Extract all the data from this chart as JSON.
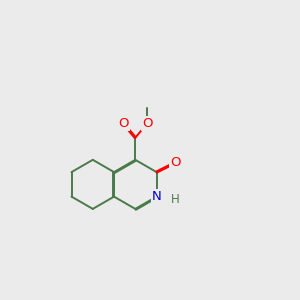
{
  "background_color": "#ebebeb",
  "bond_color": "#4a7a4a",
  "bond_width": 1.4,
  "atom_colors": {
    "O": "#ff0000",
    "N": "#0000cc",
    "C": "#4a7a4a",
    "H": "#4a7a4a"
  },
  "figsize": [
    3.0,
    3.0
  ],
  "dpi": 100
}
